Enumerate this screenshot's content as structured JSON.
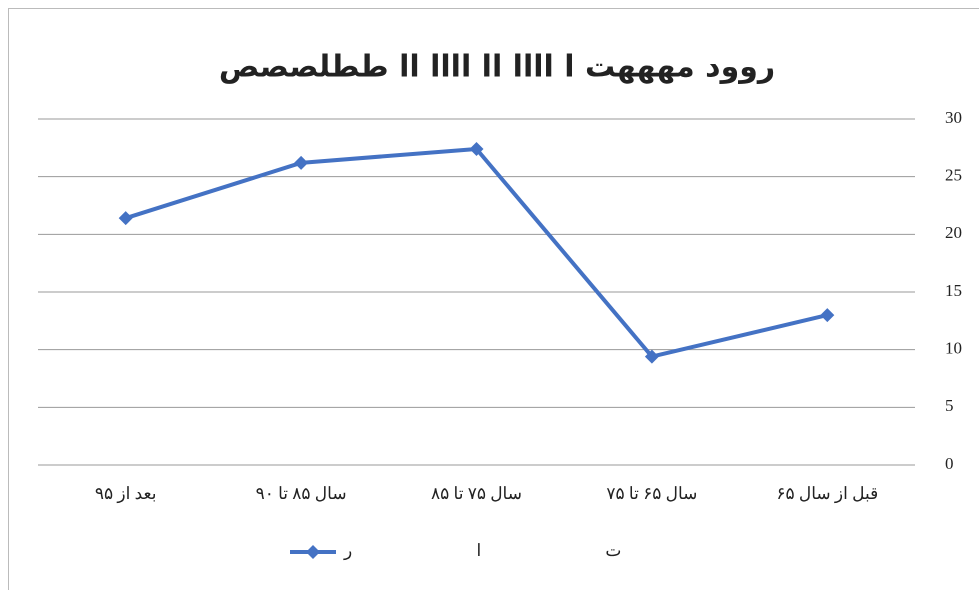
{
  "chart_data": {
    "type": "line",
    "title": "روود مهههت ا اااا اا اااا اا ططلصصص",
    "categories": [
      "قبل از سال ۶۵",
      "سال ۶۵ تا ۷۵",
      "سال ۷۵ تا ۸۵",
      "سال ۸۵ تا ۹۰",
      "بعد از ۹۵"
    ],
    "series": [
      {
        "name": "ت ا ر",
        "color": "#4472c4",
        "values": [
          13.0,
          9.4,
          27.4,
          26.2,
          21.4
        ]
      }
    ],
    "ylim": [
      0,
      30
    ],
    "yticks": [
      0,
      5,
      10,
      15,
      20,
      25,
      30
    ],
    "grid": true,
    "x_reversed": true,
    "y_axis_side": "right",
    "legend": "bottom"
  }
}
